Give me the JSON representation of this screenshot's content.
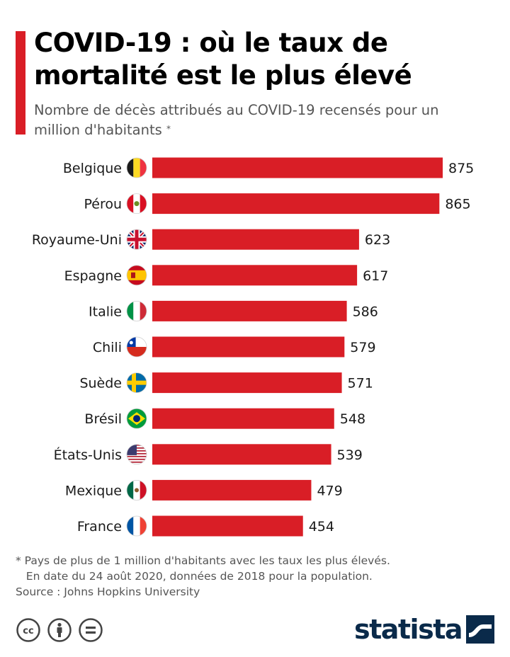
{
  "title": "COVID-19 : où le taux de mortalité est le plus élevé",
  "subtitle": "Nombre de décès attribués au COVID-19 recensés pour un million d'habitants",
  "subtitle_marker": "*",
  "chart_data": {
    "type": "bar",
    "orientation": "horizontal",
    "title": "COVID-19 : où le taux de mortalité est le plus élevé",
    "subtitle": "Nombre de décès attribués au COVID-19 recensés pour un million d'habitants",
    "categories": [
      "Belgique",
      "Pérou",
      "Royaume-Uni",
      "Espagne",
      "Italie",
      "Chili",
      "Suède",
      "Brésil",
      "États-Unis",
      "Mexique",
      "France"
    ],
    "values": [
      875,
      865,
      623,
      617,
      586,
      579,
      571,
      548,
      539,
      479,
      454
    ],
    "bar_color": "#d91e26",
    "grid": false,
    "legend": "none",
    "xlim": [
      0,
      875
    ],
    "data_labels": true
  },
  "flags": [
    "belgium-flag-icon",
    "peru-flag-icon",
    "uk-flag-icon",
    "spain-flag-icon",
    "italy-flag-icon",
    "chile-flag-icon",
    "sweden-flag-icon",
    "brazil-flag-icon",
    "usa-flag-icon",
    "mexico-flag-icon",
    "france-flag-icon"
  ],
  "footnote": {
    "line1": "* Pays de plus de 1 million d'habitants avec les taux les plus élevés.",
    "line2": "   En date du 24 août 2020, données de 2018 pour la population.",
    "source": "Source : Johns Hopkins University"
  },
  "license_icons": [
    "cc-icon",
    "attribution-icon",
    "no-derivatives-icon"
  ],
  "brand": {
    "name": "statista",
    "logo_icon": "statista-logo-icon"
  },
  "colors": {
    "accent": "#d91e26",
    "brand": "#0a2a4a",
    "text": "#1a1a1a",
    "muted": "#555555"
  }
}
